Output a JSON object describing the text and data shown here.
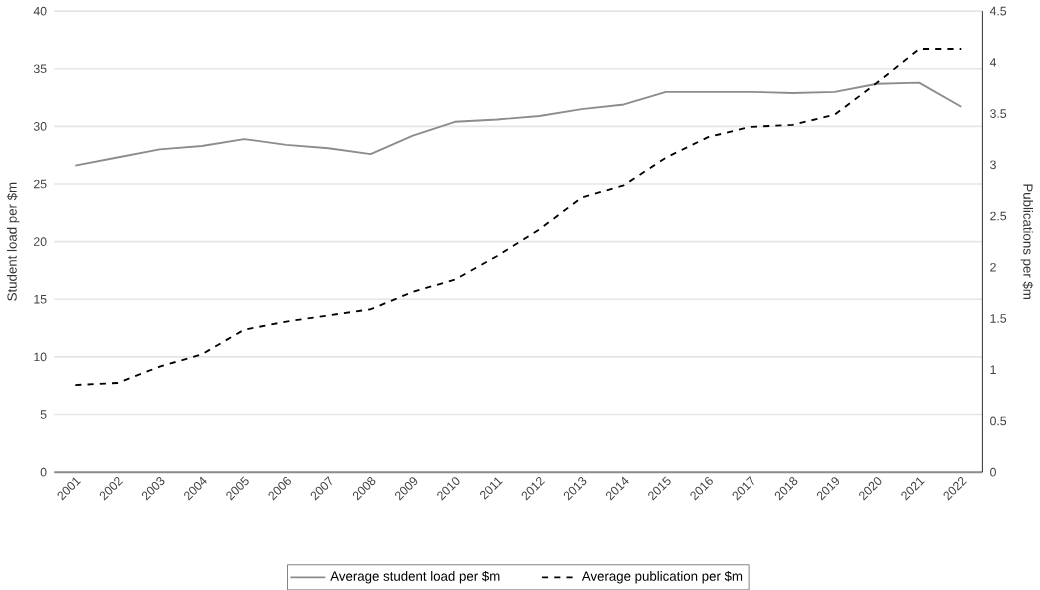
{
  "chart_data": {
    "type": "line",
    "ylabel": "Student load  per $m",
    "y2label": "Publications per $m",
    "categories": [
      "2001",
      "2002",
      "2003",
      "2004",
      "2005",
      "2006",
      "2007",
      "2008",
      "2009",
      "2010",
      "2011",
      "2012",
      "2013",
      "2014",
      "2015",
      "2016",
      "2017",
      "2018",
      "2019",
      "2020",
      "2021",
      "2022"
    ],
    "series": [
      {
        "name": "Average student load  per $m",
        "color": "#8c8c8c",
        "line_style": "solid",
        "values": [
          26.6,
          27.3,
          28.0,
          28.3,
          28.9,
          28.4,
          28.1,
          27.6,
          29.2,
          30.4,
          30.6,
          30.9,
          31.5,
          31.9,
          33.0,
          33.0,
          33.0,
          32.9,
          33.0,
          33.7,
          33.8,
          31.7
        ]
      },
      {
        "name": "Average publication per $m",
        "color": "#000000",
        "line_style": "dashed",
        "axis": "y2",
        "values": [
          0.85,
          0.87,
          1.03,
          1.15,
          1.39,
          1.47,
          1.53,
          1.59,
          1.76,
          1.88,
          2.11,
          2.37,
          2.68,
          2.8,
          3.07,
          3.27,
          3.37,
          3.39,
          3.49,
          3.8,
          4.13,
          4.13
        ]
      }
    ],
    "ylim": [
      0,
      40
    ],
    "yticks": [
      0,
      5,
      10,
      15,
      20,
      25,
      30,
      35,
      40
    ],
    "y2lim": [
      0,
      4.5
    ],
    "y2ticks": [
      0,
      0.5,
      1,
      1.5,
      2,
      2.5,
      3,
      3.5,
      4,
      4.5
    ],
    "grid": "y",
    "legend": "bottom",
    "marker": "none"
  }
}
